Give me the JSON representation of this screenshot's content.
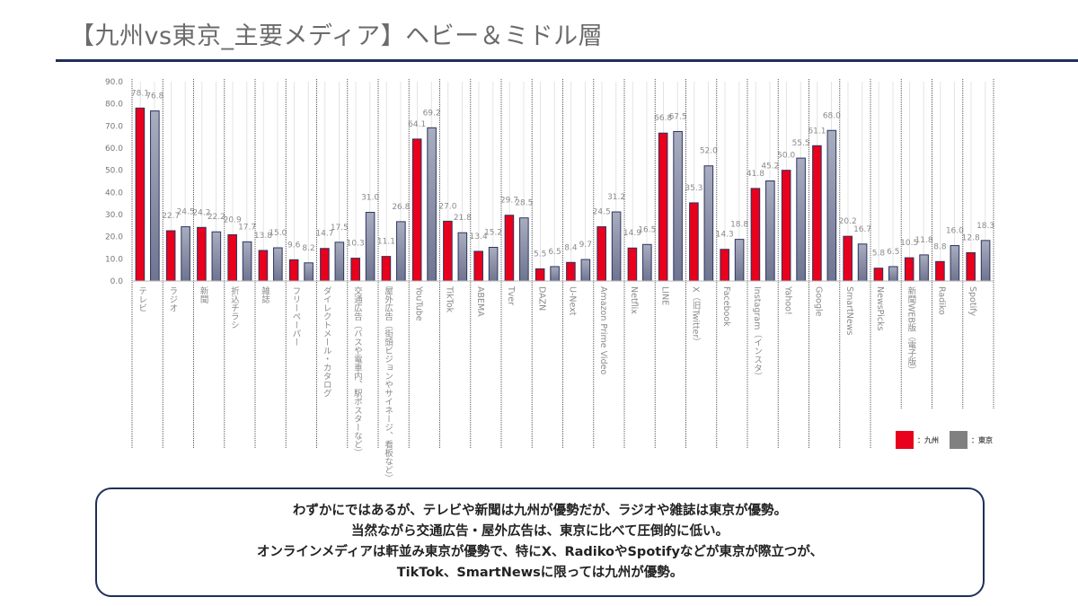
{
  "title": "【九州vs東京_主要メディア】ヘビー＆ミドル層",
  "colors": {
    "kyushu": "#e8001c",
    "tokyo": "#8b8fa6",
    "accent": "#1f2f5c"
  },
  "chart_data": {
    "type": "bar",
    "ylim": [
      0,
      90
    ],
    "yticks": [
      "0.0",
      "10.0",
      "20.0",
      "30.0",
      "40.0",
      "50.0",
      "60.0",
      "70.0",
      "80.0",
      "90.0"
    ],
    "grid": true,
    "legend_placement": "bottom-right",
    "categories": [
      "テレビ",
      "ラジオ",
      "新聞",
      "折込チラシ",
      "雑誌",
      "フリーペーパー",
      "ダイレクトメール・カタログ",
      "交通広告（バスや電車内、駅ポスターなど）",
      "屋外広告（街頭ビジョンやサイネージ、看板など）",
      "YouTube",
      "TikTok",
      "ABEMA",
      "Tver",
      "DAZN",
      "U-Next",
      "Amazon Prime Video",
      "Netflix",
      "LINE",
      "X（旧Twitter）",
      "Facebook",
      "Instagram（インスタ）",
      "Yahoo!",
      "Google",
      "SmartNews",
      "NewsPicks",
      "新聞WEB版（電子版）",
      "Radiko",
      "Spotify"
    ],
    "series": [
      {
        "name": "：九州",
        "values": [
          78.1,
          22.7,
          24.2,
          20.9,
          13.8,
          9.6,
          14.7,
          10.3,
          11.1,
          64.1,
          27.0,
          13.4,
          29.7,
          5.5,
          8.4,
          24.5,
          14.9,
          66.8,
          35.3,
          14.3,
          41.8,
          50.0,
          61.1,
          20.2,
          5.8,
          10.5,
          8.8,
          12.8
        ]
      },
      {
        "name": "：東京",
        "values": [
          76.8,
          24.5,
          22.2,
          17.7,
          15.0,
          8.2,
          17.5,
          31.0,
          26.8,
          69.2,
          21.8,
          15.2,
          28.5,
          6.5,
          9.7,
          31.2,
          16.5,
          67.5,
          52.0,
          18.8,
          45.2,
          55.5,
          68.0,
          16.7,
          6.5,
          11.8,
          16.0,
          18.3
        ]
      }
    ]
  },
  "note": [
    "わずかにではあるが、テレビや新聞は九州が優勢だが、ラジオや雑誌は東京が優勢。",
    "当然ながら交通広告・屋外広告は、東京に比べて圧倒的に低い。",
    "オンラインメディアは軒並み東京が優勢で、特にX、RadikoやSpotifyなどが東京が際立つが、",
    "TikTok、SmartNewsに限っては九州が優勢。"
  ]
}
